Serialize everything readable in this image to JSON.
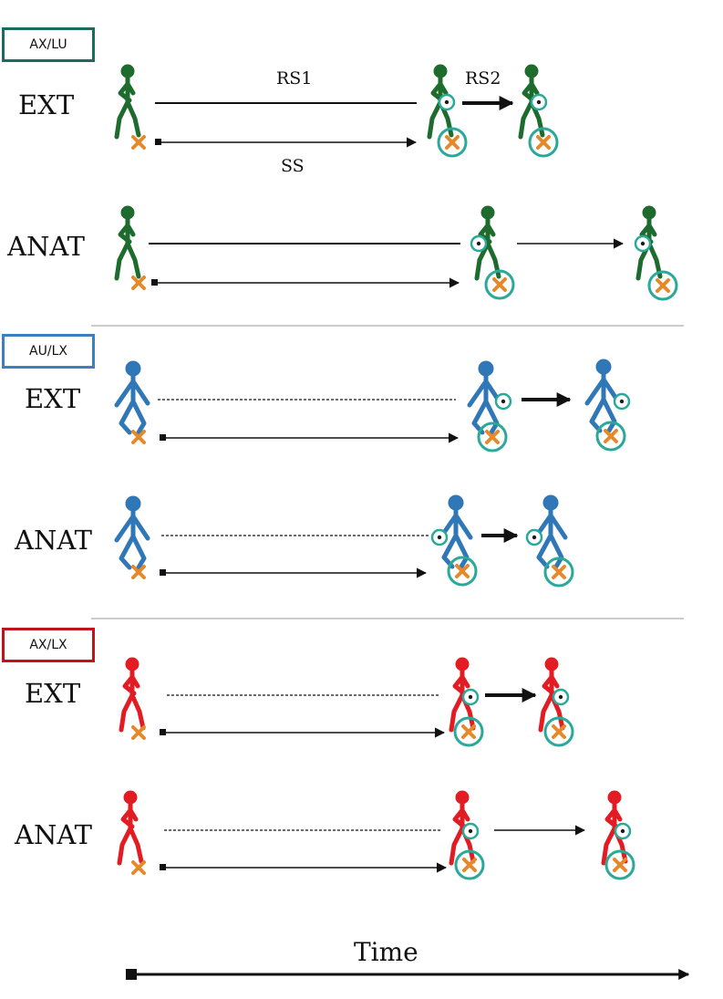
{
  "sections": [
    {
      "group": "AX/LU",
      "color": "#1b6b63",
      "figure_color": "#1e6b2e",
      "rows": [
        {
          "label": "EXT"
        },
        {
          "label": "ANAT"
        }
      ]
    },
    {
      "group": "AU/LX",
      "color": "#3d7fc1",
      "figure_color": "#2f77b7",
      "rows": [
        {
          "label": "EXT"
        },
        {
          "label": "ANAT"
        }
      ]
    },
    {
      "group": "AX/LX",
      "color": "#c0141c",
      "figure_color": "#e31c24",
      "rows": [
        {
          "label": "EXT"
        },
        {
          "label": "ANAT"
        }
      ]
    }
  ],
  "annotations": {
    "rs1": "RS1",
    "rs2": "RS2",
    "ss": "SS"
  },
  "time_axis": {
    "label": "Time"
  },
  "colors": {
    "target_ring": "#2aa99a",
    "cross": "#e5892a",
    "line": "#111111",
    "divider": "#999999"
  }
}
